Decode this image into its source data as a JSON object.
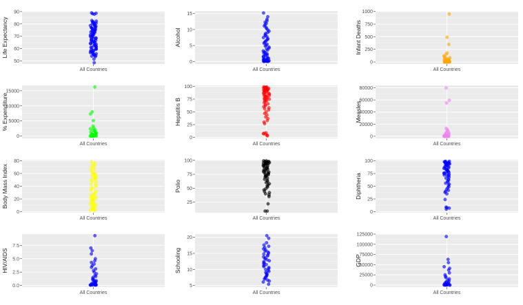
{
  "chart_data": [
    {
      "type": "scatter",
      "ylabel": "Life Expectancy",
      "category": "All Countries",
      "ylim": [
        47.5,
        90.5
      ],
      "yticks": [
        50,
        60,
        70,
        80,
        90
      ],
      "color": "#0000FF",
      "values": [
        89.0,
        88.7,
        88.3,
        87.9,
        82.8,
        82.3,
        81.9,
        81.5,
        81.1,
        80.7,
        80.3,
        79.9,
        79.5,
        79.1,
        78.7,
        78.3,
        77.9,
        77.5,
        77.1,
        76.7,
        76.3,
        75.9,
        75.5,
        75.1,
        74.7,
        74.3,
        73.9,
        73.5,
        73.1,
        72.7,
        72.3,
        71.9,
        71.5,
        71.1,
        70.7,
        70.3,
        69.9,
        69.5,
        69.1,
        68.7,
        68.3,
        67.9,
        67.5,
        67.1,
        66.7,
        66.3,
        65.9,
        65.5,
        65.1,
        64.7,
        64.3,
        63.9,
        63.5,
        63.1,
        62.7,
        62.3,
        61.9,
        61.5,
        61.1,
        60.7,
        60.3,
        59.9,
        59.5,
        59.1,
        58.7,
        58.3,
        57.9,
        57.5,
        57.1,
        56.7,
        56.3,
        55.9,
        55.5,
        55.1,
        54.7,
        54.3,
        53.9,
        53.5,
        51.5,
        48.6
      ]
    },
    {
      "type": "scatter",
      "ylabel": "Alcohol",
      "category": "All Countries",
      "ylim": [
        -0.8,
        15.8
      ],
      "yticks": [
        0,
        5,
        10,
        15
      ],
      "color": "#0000FF",
      "values": [
        15.2,
        14.0,
        13.2,
        12.7,
        12.3,
        11.9,
        11.5,
        11.1,
        10.7,
        10.3,
        9.9,
        9.5,
        9.1,
        8.8,
        8.4,
        8.1,
        7.8,
        7.5,
        7.2,
        6.9,
        6.6,
        6.3,
        6.0,
        5.7,
        5.4,
        5.1,
        4.8,
        4.5,
        4.2,
        3.9,
        3.6,
        3.3,
        3.0,
        2.8,
        2.6,
        2.4,
        2.2,
        2.0,
        1.8,
        1.6,
        1.4,
        1.2,
        1.0,
        0.9,
        0.8,
        0.7,
        0.6,
        0.5,
        0.4,
        0.3,
        0.25,
        0.2,
        0.15,
        0.12,
        0.1,
        0.08,
        0.06,
        0.04,
        0.02,
        0.01
      ]
    },
    {
      "type": "scatter",
      "ylabel": "Infant Deaths",
      "category": "All Countries",
      "ylim": [
        -40,
        1010
      ],
      "yticks": [
        0,
        250,
        500,
        750,
        1000
      ],
      "color": "#FFA500",
      "values": [
        950,
        490,
        350,
        180,
        150,
        120,
        100,
        85,
        70,
        60,
        50,
        45,
        40,
        35,
        30,
        28,
        25,
        22,
        20,
        18,
        16,
        14,
        12,
        10,
        9,
        8,
        7,
        6,
        5,
        4,
        3,
        3,
        2,
        2,
        1,
        1,
        1,
        0,
        0,
        0,
        0,
        0,
        0,
        0,
        0
      ]
    },
    {
      "type": "scatter",
      "ylabel": "% Expenditure",
      "category": "All Countries",
      "ylim": [
        -800,
        16800
      ],
      "yticks": [
        0,
        5000,
        10000,
        15000
      ],
      "color": "#00FF00",
      "values": [
        16250,
        8000,
        7300,
        5100,
        3300,
        2700,
        2400,
        2100,
        1900,
        1700,
        1500,
        1300,
        1100,
        950,
        800,
        700,
        600,
        500,
        420,
        350,
        300,
        250,
        200,
        160,
        130,
        100,
        80,
        60,
        45,
        30,
        20,
        10,
        5,
        0,
        0,
        0,
        0,
        0
      ]
    },
    {
      "type": "scatter",
      "ylabel": "Hepatitis B",
      "category": "All Countries",
      "ylim": [
        -2,
        102
      ],
      "yticks": [
        0,
        25,
        50,
        75,
        100
      ],
      "color": "#FF0000",
      "values": [
        99,
        99,
        98,
        98,
        97,
        97,
        96,
        96,
        95,
        95,
        94,
        94,
        93,
        93,
        92,
        92,
        91,
        90,
        89,
        88,
        87,
        86,
        85,
        84,
        83,
        82,
        81,
        80,
        79,
        78,
        77,
        76,
        75,
        74,
        73,
        72,
        70,
        68,
        66,
        64,
        62,
        60,
        58,
        56,
        54,
        50,
        47,
        44,
        40,
        37,
        33,
        30,
        27,
        9,
        8,
        7,
        6,
        4,
        3
      ]
    },
    {
      "type": "scatter",
      "ylabel": "Measles",
      "category": "All Countries",
      "ylim": [
        -3500,
        84000
      ],
      "yticks": [
        0,
        20000,
        40000,
        60000,
        80000
      ],
      "color": "#EE82EE",
      "values": [
        80000,
        59500,
        55000,
        13000,
        11000,
        9500,
        7500,
        6000,
        5000,
        4000,
        3200,
        2500,
        1900,
        1400,
        1000,
        700,
        450,
        250,
        150,
        80,
        40,
        20,
        10,
        5,
        0,
        0,
        0,
        0,
        0,
        0
      ]
    },
    {
      "type": "scatter",
      "ylabel": "Body Mass Index",
      "category": "All Countries",
      "ylim": [
        -1.5,
        81.5
      ],
      "yticks": [
        0,
        20,
        40,
        60,
        80
      ],
      "color": "#FFFF00",
      "values": [
        78,
        76,
        74,
        72,
        70,
        68,
        66,
        64,
        62,
        60,
        59,
        58,
        57,
        56,
        55,
        54,
        53,
        52,
        51,
        50,
        48,
        46,
        44,
        42,
        40,
        38,
        36,
        34,
        32,
        30,
        28,
        27,
        26,
        25,
        24,
        23,
        22,
        21,
        20,
        19,
        18,
        17,
        16,
        15,
        14,
        13,
        12,
        11,
        10,
        9,
        8,
        7,
        6,
        5,
        4,
        3,
        2,
        2
      ]
    },
    {
      "type": "scatter",
      "ylabel": "Polio",
      "category": "All Countries",
      "ylim": [
        6,
        101
      ],
      "yticks": [
        25,
        50,
        75,
        100
      ],
      "color": "#000000",
      "values": [
        99,
        99,
        98,
        98,
        97,
        97,
        96,
        96,
        95,
        95,
        94,
        94,
        93,
        93,
        92,
        91,
        90,
        89,
        88,
        87,
        86,
        85,
        84,
        83,
        82,
        81,
        80,
        79,
        78,
        77,
        76,
        75,
        74,
        73,
        72,
        71,
        70,
        68,
        66,
        64,
        62,
        60,
        58,
        56,
        54,
        52,
        49,
        47,
        44,
        42,
        40,
        38,
        35,
        22,
        9,
        9
      ]
    },
    {
      "type": "scatter",
      "ylabel": "Diphtheria",
      "category": "All Countries",
      "ylim": [
        -2,
        102
      ],
      "yticks": [
        0,
        25,
        50,
        75,
        100
      ],
      "color": "#0000FF",
      "values": [
        99,
        99,
        98,
        98,
        97,
        97,
        96,
        96,
        95,
        95,
        94,
        94,
        93,
        93,
        92,
        91,
        90,
        89,
        88,
        87,
        86,
        85,
        84,
        83,
        82,
        81,
        80,
        79,
        78,
        77,
        76,
        75,
        74,
        73,
        72,
        71,
        70,
        68,
        66,
        64,
        62,
        60,
        58,
        56,
        54,
        52,
        49,
        47,
        44,
        42,
        40,
        38,
        35,
        24,
        9,
        8,
        7,
        5
      ]
    },
    {
      "type": "scatter",
      "ylabel": "HIV/AIDS",
      "category": "All Countries",
      "ylim": [
        -0.3,
        9.6
      ],
      "yticks": [
        0.0,
        2.5,
        5.0,
        7.5
      ],
      "tick_labels": [
        "0.0",
        "2.5",
        "5.0",
        "7.5"
      ],
      "color": "#0000FF",
      "values": [
        9.3,
        7.0,
        6.5,
        5.9,
        5.0,
        4.6,
        4.3,
        4.0,
        3.7,
        3.4,
        3.1,
        2.8,
        2.5,
        2.2,
        1.9,
        1.7,
        1.5,
        1.3,
        1.1,
        1.0,
        0.9,
        0.8,
        0.7,
        0.6,
        0.5,
        0.45,
        0.4,
        0.35,
        0.3,
        0.25,
        0.2,
        0.15,
        0.1,
        0.1,
        0.1,
        0.1,
        0.1,
        0.1,
        0.1,
        0.1
      ]
    },
    {
      "type": "scatter",
      "ylabel": "Schooling",
      "category": "All Countries",
      "ylim": [
        4.5,
        21.0
      ],
      "yticks": [
        5,
        10,
        15,
        20
      ],
      "color": "#0000FF",
      "values": [
        20.5,
        19.7,
        18.3,
        17.6,
        17.2,
        16.8,
        16.4,
        16.0,
        15.7,
        15.4,
        15.1,
        14.8,
        14.5,
        14.2,
        13.9,
        13.6,
        13.3,
        13.0,
        12.7,
        12.4,
        12.1,
        11.8,
        11.5,
        11.2,
        10.9,
        10.6,
        10.3,
        10.0,
        9.7,
        9.4,
        9.1,
        8.8,
        8.5,
        8.2,
        7.9,
        7.6,
        7.3,
        7.0,
        6.7,
        6.4,
        6.1,
        5.4
      ]
    },
    {
      "type": "scatter",
      "ylabel": "GDP",
      "category": "All Countries",
      "ylim": [
        -5000,
        125000
      ],
      "yticks": [
        0,
        25000,
        50000,
        75000,
        100000,
        125000
      ],
      "color": "#0000FF",
      "values": [
        119000,
        63000,
        55000,
        45000,
        41000,
        37000,
        30000,
        25000,
        21000,
        18000,
        15000,
        12000,
        10000,
        8000,
        6500,
        5000,
        4000,
        3200,
        2500,
        2000,
        1500,
        1100,
        800,
        500,
        300,
        200,
        100,
        50,
        20,
        10
      ]
    }
  ]
}
